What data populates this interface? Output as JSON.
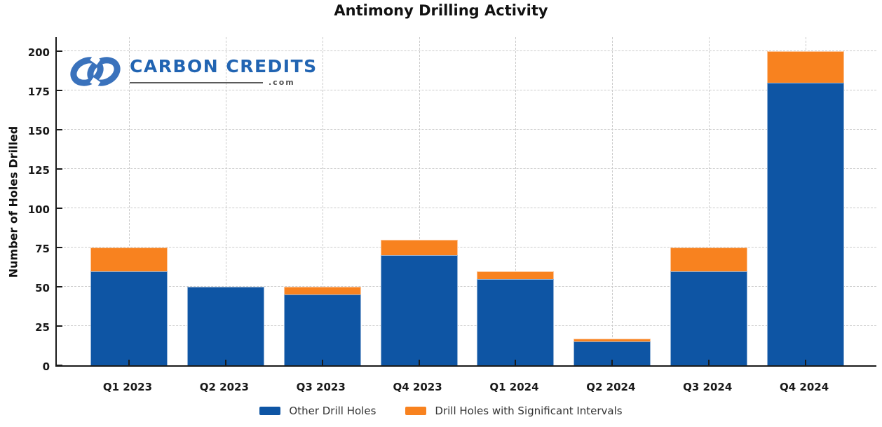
{
  "page": {
    "background": "#ffffff"
  },
  "logo": {
    "brand": "CARBON CREDITS",
    "domain": ".com",
    "icon": "interlocking-loops-icon",
    "brand_color": "#2164b2",
    "icon_color": "#3a72bc"
  },
  "chart_data": {
    "type": "bar",
    "stacked": true,
    "title": "Antimony Drilling Activity",
    "ylabel": "Number of Holes Drilled",
    "xlabel": "",
    "categories": [
      "Q1 2023",
      "Q2 2023",
      "Q3 2023",
      "Q4 2023",
      "Q1 2024",
      "Q2 2024",
      "Q3 2024",
      "Q4 2024"
    ],
    "series": [
      {
        "name": "Other Drill Holes",
        "color": "#0E55A4",
        "values": [
          60,
          50,
          45,
          70,
          55,
          15,
          60,
          180
        ]
      },
      {
        "name": "Drill Holes with Significant Intervals",
        "color": "#F8821F",
        "values": [
          15,
          0,
          5,
          10,
          5,
          2,
          15,
          20
        ]
      }
    ],
    "totals": [
      75,
      50,
      50,
      80,
      60,
      17,
      75,
      200
    ],
    "yticks": [
      0,
      25,
      50,
      75,
      100,
      125,
      150,
      175,
      200
    ],
    "ylim": [
      0,
      210
    ],
    "grid": "dashed-both-axes",
    "gridline_color": "#cbcbcb",
    "axis_color": "#1a1a1a",
    "tick_direction": "in",
    "legend_position": "bottom-center"
  }
}
